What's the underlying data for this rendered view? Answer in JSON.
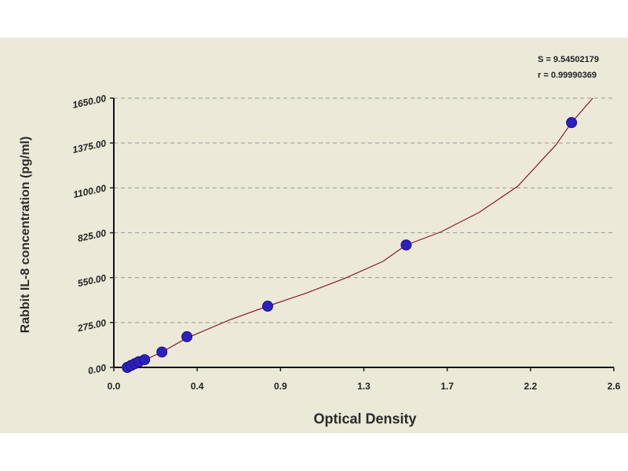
{
  "chart_data": {
    "type": "scatter",
    "xlabel": "Optical Density",
    "ylabel": "Rabbit IL-8  concentration (pg/ml)",
    "xlim": [
      0,
      2.6
    ],
    "ylim": [
      0,
      1650
    ],
    "x_ticks": [
      "0.0",
      "0.4",
      "0.9",
      "1.3",
      "1.7",
      "2.2",
      "2.6"
    ],
    "y_ticks": [
      "0.00",
      "275.00",
      "550.00",
      "825.00",
      "1100.00",
      "1375.00",
      "1650.00"
    ],
    "grid": "horizontal dashed",
    "annotations": {
      "s": "S = 9.54502179",
      "r": "r = 0.99990369"
    },
    "series": [
      {
        "type": "scatter",
        "marker_color": "#2e1fc0",
        "points": [
          [
            0.07,
            0
          ],
          [
            0.09,
            12
          ],
          [
            0.11,
            23
          ],
          [
            0.13,
            35
          ],
          [
            0.16,
            47
          ],
          [
            0.25,
            94
          ],
          [
            0.38,
            188
          ],
          [
            0.8,
            375
          ],
          [
            1.52,
            750
          ],
          [
            2.38,
            1500
          ]
        ]
      },
      {
        "type": "line",
        "line_color": "#8b1a2a",
        "points": [
          [
            0.07,
            0
          ],
          [
            0.1,
            16
          ],
          [
            0.15,
            40
          ],
          [
            0.25,
            94
          ],
          [
            0.38,
            180
          ],
          [
            0.6,
            290
          ],
          [
            0.8,
            375
          ],
          [
            1.0,
            455
          ],
          [
            1.2,
            545
          ],
          [
            1.4,
            650
          ],
          [
            1.52,
            750
          ],
          [
            1.7,
            830
          ],
          [
            1.9,
            950
          ],
          [
            2.1,
            1110
          ],
          [
            2.3,
            1365
          ],
          [
            2.38,
            1500
          ],
          [
            2.49,
            1650
          ]
        ]
      }
    ]
  }
}
